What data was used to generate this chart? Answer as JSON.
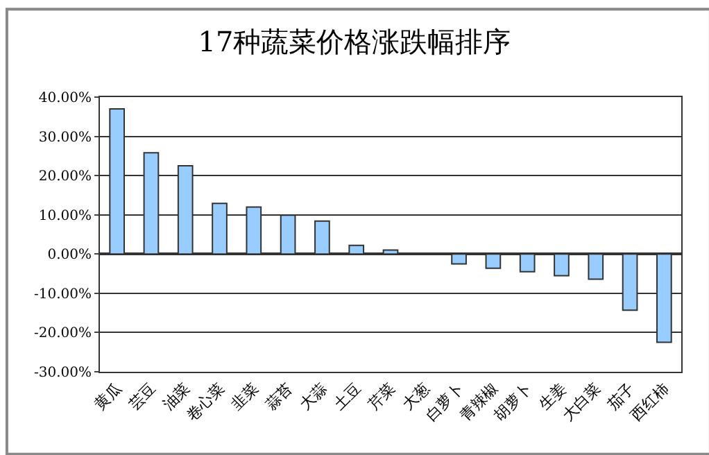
{
  "chart_data": {
    "type": "bar",
    "title": "17种蔬菜价格涨跌幅排序",
    "categories": [
      "黄瓜",
      "芸豆",
      "油菜",
      "卷心菜",
      "韭菜",
      "蒜苔",
      "大蒜",
      "土豆",
      "芹菜",
      "大葱",
      "白萝卜",
      "青辣椒",
      "胡萝卜",
      "生姜",
      "大白菜",
      "茄子",
      "西红柿"
    ],
    "values": [
      37.0,
      25.8,
      22.5,
      12.9,
      12.0,
      9.9,
      8.4,
      2.2,
      1.0,
      null,
      -2.5,
      -3.6,
      -4.5,
      -5.5,
      -6.4,
      -14.3,
      -22.5
    ],
    "color": "#99ccff",
    "ylim": [
      -30,
      40
    ],
    "yticks": [
      {
        "value": -30,
        "label": "-30.00%"
      },
      {
        "value": -20,
        "label": "-20.00%"
      },
      {
        "value": -10,
        "label": "-10.00%"
      },
      {
        "value": 0,
        "label": "0.00%"
      },
      {
        "value": 10,
        "label": "10.00%"
      },
      {
        "value": 20,
        "label": "20.00%"
      },
      {
        "value": 30,
        "label": "30.00%"
      },
      {
        "value": 40,
        "label": "40.00%"
      }
    ],
    "grid": "y"
  }
}
